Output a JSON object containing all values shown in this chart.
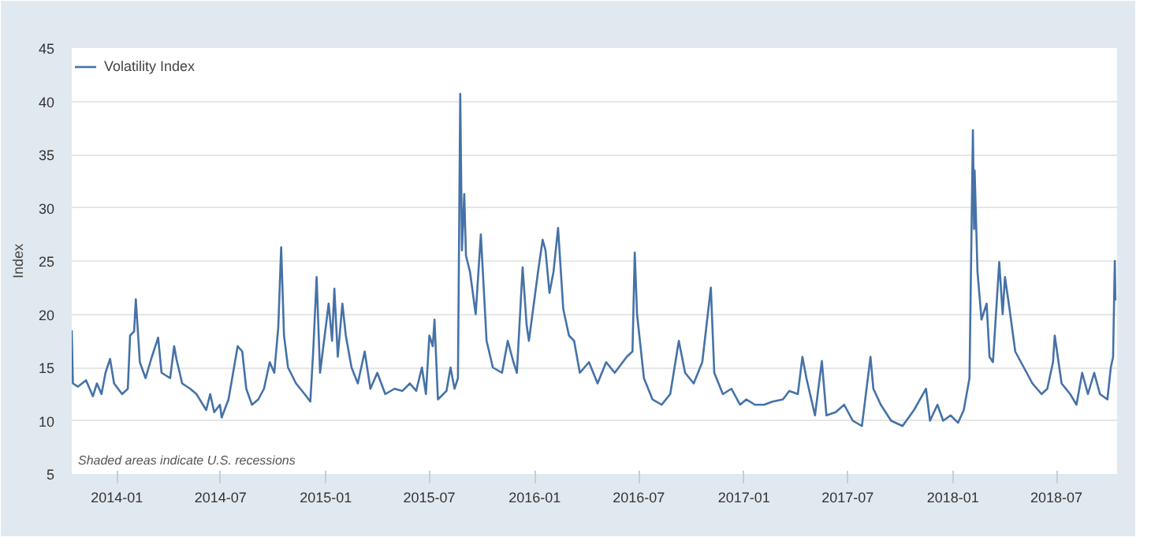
{
  "chart_data": {
    "type": "line",
    "ylabel": "Index",
    "xlim": [
      "2013-10-14",
      "2018-10-15"
    ],
    "ylim": [
      5,
      45
    ],
    "yticks": [
      5,
      10,
      15,
      20,
      25,
      30,
      35,
      40,
      45
    ],
    "xticks": [
      {
        "value": "2014-01-01",
        "label": "2014-01"
      },
      {
        "value": "2014-07-01",
        "label": "2014-07"
      },
      {
        "value": "2015-01-01",
        "label": "2015-01"
      },
      {
        "value": "2015-07-01",
        "label": "2015-07"
      },
      {
        "value": "2016-01-01",
        "label": "2016-01"
      },
      {
        "value": "2016-07-01",
        "label": "2016-07"
      },
      {
        "value": "2017-01-01",
        "label": "2017-01"
      },
      {
        "value": "2017-07-01",
        "label": "2017-07"
      },
      {
        "value": "2018-01-01",
        "label": "2018-01"
      },
      {
        "value": "2018-07-01",
        "label": "2018-07"
      }
    ],
    "grid": "y",
    "legend": "top left",
    "line_style": "solid",
    "annotations": [
      "Shaded areas indicate U.S. recessions"
    ],
    "x": [
      "2013-10-14",
      "2013-10-16",
      "2013-10-25",
      "2013-11-08",
      "2013-11-20",
      "2013-11-27",
      "2013-12-05",
      "2013-12-12",
      "2013-12-20",
      "2013-12-27",
      "2014-01-10",
      "2014-01-20",
      "2014-01-24",
      "2014-01-31",
      "2014-02-03",
      "2014-02-10",
      "2014-02-20",
      "2014-03-03",
      "2014-03-14",
      "2014-03-20",
      "2014-04-04",
      "2014-04-11",
      "2014-04-15",
      "2014-04-25",
      "2014-05-09",
      "2014-05-20",
      "2014-06-06",
      "2014-06-13",
      "2014-06-20",
      "2014-06-30",
      "2014-07-03",
      "2014-07-15",
      "2014-07-31",
      "2014-08-08",
      "2014-08-15",
      "2014-08-25",
      "2014-09-05",
      "2014-09-15",
      "2014-09-25",
      "2014-10-03",
      "2014-10-10",
      "2014-10-15",
      "2014-10-20",
      "2014-10-27",
      "2014-11-10",
      "2014-11-25",
      "2014-12-05",
      "2014-12-10",
      "2014-12-16",
      "2014-12-22",
      "2015-01-06",
      "2015-01-12",
      "2015-01-16",
      "2015-01-22",
      "2015-01-30",
      "2015-02-05",
      "2015-02-15",
      "2015-02-26",
      "2015-03-10",
      "2015-03-20",
      "2015-04-01",
      "2015-04-15",
      "2015-05-01",
      "2015-05-15",
      "2015-05-28",
      "2015-06-08",
      "2015-06-18",
      "2015-06-25",
      "2015-07-01",
      "2015-07-07",
      "2015-07-10",
      "2015-07-16",
      "2015-07-31",
      "2015-08-07",
      "2015-08-14",
      "2015-08-20",
      "2015-08-24",
      "2015-08-27",
      "2015-08-31",
      "2015-09-03",
      "2015-09-10",
      "2015-09-20",
      "2015-09-29",
      "2015-10-09",
      "2015-10-20",
      "2015-11-05",
      "2015-11-15",
      "2015-11-25",
      "2015-12-01",
      "2015-12-11",
      "2015-12-18",
      "2015-12-22",
      "2016-01-07",
      "2016-01-15",
      "2016-01-20",
      "2016-01-27",
      "2016-02-03",
      "2016-02-11",
      "2016-02-20",
      "2016-03-01",
      "2016-03-10",
      "2016-03-20",
      "2016-04-05",
      "2016-04-20",
      "2016-05-05",
      "2016-05-20",
      "2016-06-10",
      "2016-06-20",
      "2016-06-24",
      "2016-06-28",
      "2016-07-10",
      "2016-07-25",
      "2016-08-10",
      "2016-08-25",
      "2016-09-09",
      "2016-09-20",
      "2016-10-05",
      "2016-10-20",
      "2016-11-04",
      "2016-11-10",
      "2016-11-25",
      "2016-12-10",
      "2016-12-25",
      "2017-01-05",
      "2017-01-20",
      "2017-02-05",
      "2017-02-20",
      "2017-03-10",
      "2017-03-21",
      "2017-04-05",
      "2017-04-13",
      "2017-04-20",
      "2017-05-05",
      "2017-05-17",
      "2017-05-25",
      "2017-06-10",
      "2017-06-25",
      "2017-07-10",
      "2017-07-26",
      "2017-08-10",
      "2017-08-15",
      "2017-08-28",
      "2017-09-15",
      "2017-10-05",
      "2017-10-25",
      "2017-11-15",
      "2017-11-22",
      "2017-12-05",
      "2017-12-15",
      "2017-12-28",
      "2018-01-10",
      "2018-01-20",
      "2018-01-30",
      "2018-02-05",
      "2018-02-07",
      "2018-02-08",
      "2018-02-13",
      "2018-02-20",
      "2018-03-01",
      "2018-03-06",
      "2018-03-12",
      "2018-03-23",
      "2018-03-29",
      "2018-04-02",
      "2018-04-10",
      "2018-04-20",
      "2018-05-05",
      "2018-05-20",
      "2018-06-05",
      "2018-06-15",
      "2018-06-25",
      "2018-06-28",
      "2018-07-10",
      "2018-07-25",
      "2018-08-05",
      "2018-08-15",
      "2018-08-25",
      "2018-09-05",
      "2018-09-15",
      "2018-09-28",
      "2018-10-04",
      "2018-10-08",
      "2018-10-11",
      "2018-10-12"
    ],
    "series": [
      {
        "name": "Volatility Index",
        "color": "#4572a7",
        "values": [
          18.5,
          13.5,
          13.2,
          13.8,
          12.3,
          13.5,
          12.5,
          14.5,
          15.8,
          13.5,
          12.5,
          13.0,
          18.0,
          18.4,
          21.4,
          15.5,
          14.0,
          16.0,
          17.8,
          14.5,
          14.0,
          17.0,
          15.8,
          13.5,
          13.0,
          12.5,
          11.0,
          12.5,
          10.8,
          11.5,
          10.3,
          12.0,
          17.0,
          16.5,
          13.0,
          11.5,
          12.0,
          13.0,
          15.5,
          14.5,
          18.8,
          26.3,
          18.0,
          15.0,
          13.5,
          12.5,
          11.8,
          16.5,
          23.5,
          14.5,
          21.0,
          17.5,
          22.4,
          16.0,
          21.0,
          18.0,
          15.0,
          13.5,
          16.5,
          13.0,
          14.5,
          12.5,
          13.0,
          12.8,
          13.5,
          12.8,
          15.0,
          12.5,
          18.0,
          17.0,
          19.5,
          12.0,
          12.8,
          15.0,
          13.0,
          14.0,
          40.7,
          26.0,
          31.3,
          25.5,
          24.0,
          20.0,
          27.5,
          17.5,
          15.0,
          14.5,
          17.5,
          15.5,
          14.5,
          24.4,
          19.0,
          17.5,
          24.0,
          27.0,
          26.0,
          22.0,
          24.0,
          28.1,
          20.5,
          18.0,
          17.5,
          14.5,
          15.5,
          13.5,
          15.5,
          14.5,
          16.0,
          16.5,
          25.8,
          20.0,
          14.0,
          12.0,
          11.5,
          12.5,
          17.5,
          14.5,
          13.5,
          15.5,
          22.5,
          14.5,
          12.5,
          13.0,
          11.5,
          12.0,
          11.5,
          11.5,
          11.8,
          12.0,
          12.8,
          12.5,
          16.0,
          14.0,
          10.5,
          15.6,
          10.5,
          10.8,
          11.5,
          10.0,
          9.5,
          16.0,
          13.0,
          11.5,
          10.0,
          9.5,
          11.0,
          13.0,
          10.0,
          11.5,
          10.0,
          10.5,
          9.8,
          11.0,
          14.0,
          37.3,
          28.0,
          33.5,
          24.0,
          19.5,
          21.0,
          16.0,
          15.5,
          24.9,
          20.0,
          23.5,
          20.5,
          16.5,
          15.0,
          13.5,
          12.5,
          13.0,
          15.5,
          18.0,
          13.5,
          12.5,
          11.5,
          14.5,
          12.5,
          14.5,
          12.5,
          12.0,
          15.0,
          16.0,
          25.0,
          21.3
        ]
      }
    ]
  }
}
